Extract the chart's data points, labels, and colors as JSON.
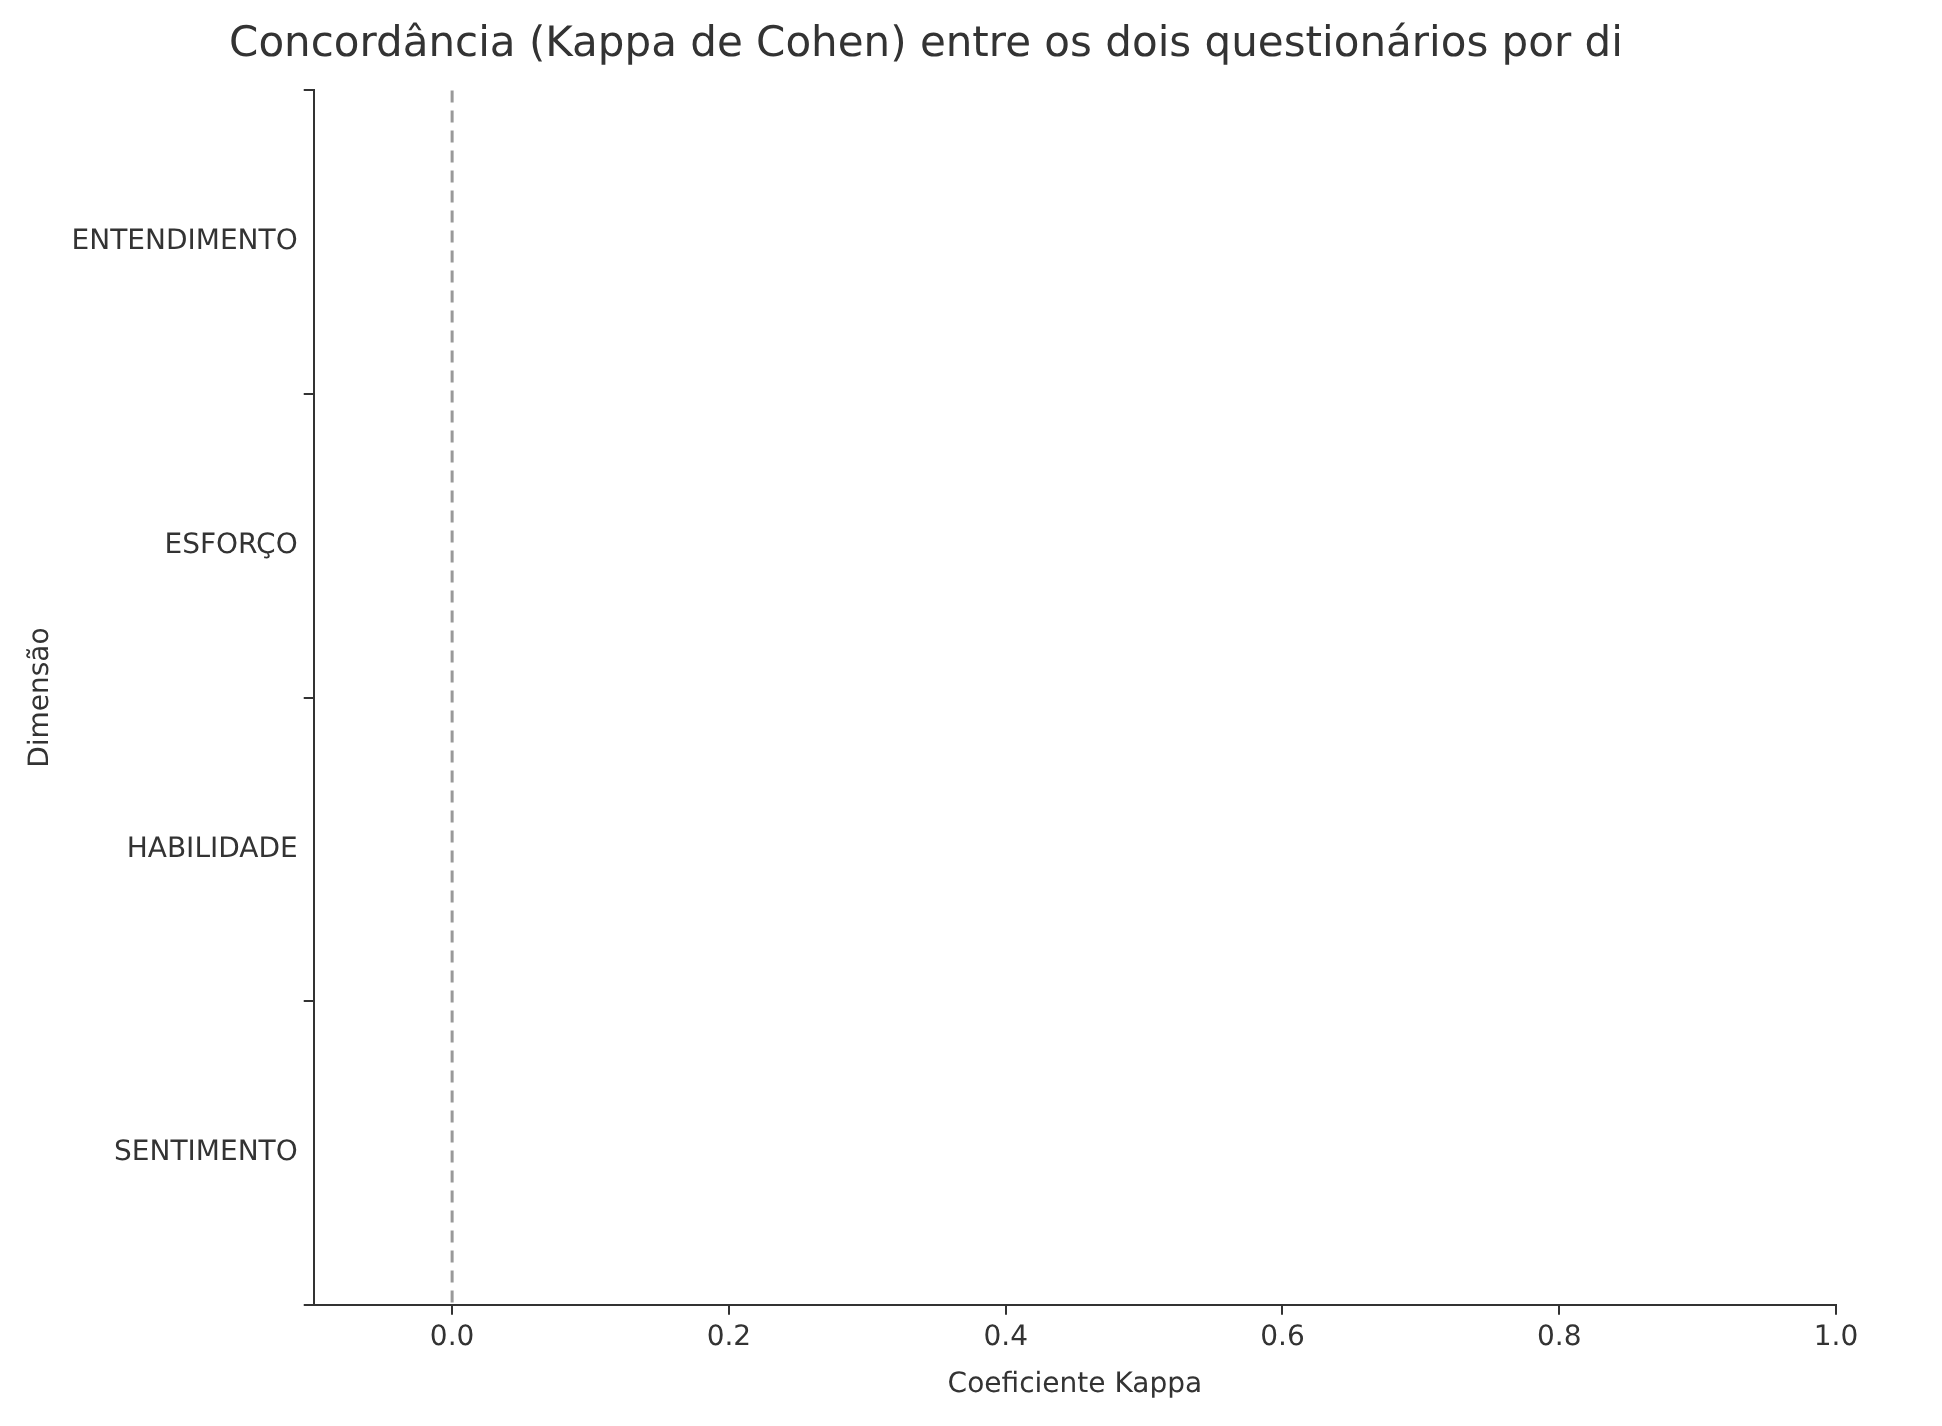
{
  "chart_data": {
    "type": "bar",
    "orientation": "horizontal",
    "title": "Concordância (Kappa de Cohen) entre os dois questionários por di",
    "xlabel": "Coeficiente Kappa",
    "ylabel": "Dimensão",
    "categories": [
      "ENTENDIMENTO",
      "ESFORÇO",
      "HABILIDADE",
      "SENTIMENTO"
    ],
    "values": [
      null,
      null,
      null,
      null
    ],
    "xlim": [
      -0.1,
      1.0
    ],
    "xticks": [
      {
        "value": 0,
        "label": "0.0"
      },
      {
        "value": 0.2,
        "label": "0.2"
      },
      {
        "value": 0.4,
        "label": "0.4"
      },
      {
        "value": 0.6,
        "label": "0.6"
      },
      {
        "value": 0.8,
        "label": "0.8"
      },
      {
        "value": 1,
        "label": "1.0"
      }
    ],
    "ref_lines": [
      {
        "axis": "x",
        "value": 0,
        "color": "#999999",
        "line_style": "dashed"
      }
    ],
    "grid": false,
    "legend": false
  }
}
